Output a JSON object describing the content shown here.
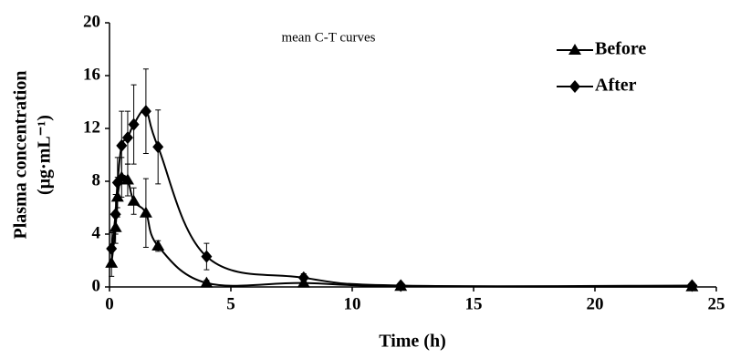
{
  "chart_data": {
    "type": "line",
    "title": "mean C-T curves",
    "x_label": "Time (h)",
    "y_label": "Plasma concentration",
    "y_label_unit": "(μg·mL⁻¹)",
    "xlim": [
      0,
      25
    ],
    "xticks": [
      0,
      5,
      10,
      15,
      20,
      25
    ],
    "ylim": [
      0,
      20
    ],
    "yticks": [
      0,
      4,
      8,
      12,
      16,
      20
    ],
    "legend": "top-right",
    "series": [
      {
        "name": "Before",
        "color": "#000000",
        "marker": "triangle",
        "x": [
          0.083,
          0.25,
          0.33,
          0.5,
          0.75,
          1,
          1.5,
          2,
          4,
          8,
          12,
          24
        ],
        "values": [
          1.8,
          4.5,
          6.8,
          8.3,
          8.1,
          6.5,
          5.6,
          3.1,
          0.3,
          0.3,
          0.05,
          0.02
        ],
        "errors": [
          1.0,
          1.2,
          1.5,
          1.5,
          1.2,
          1.0,
          2.6,
          0.4,
          0.2,
          0.2,
          0.05,
          0.02
        ]
      },
      {
        "name": "After",
        "color": "#000000",
        "marker": "diamond",
        "x": [
          0.083,
          0.25,
          0.33,
          0.5,
          0.75,
          1,
          1.5,
          2,
          4,
          8,
          12,
          24
        ],
        "values": [
          2.9,
          5.5,
          7.9,
          10.7,
          11.3,
          12.3,
          13.3,
          10.6,
          2.3,
          0.7,
          0.1,
          0.1
        ],
        "errors": [
          1.2,
          1.5,
          1.9,
          2.6,
          2.0,
          3.0,
          3.2,
          2.8,
          1.0,
          0.3,
          0.1,
          0.05
        ]
      }
    ]
  }
}
